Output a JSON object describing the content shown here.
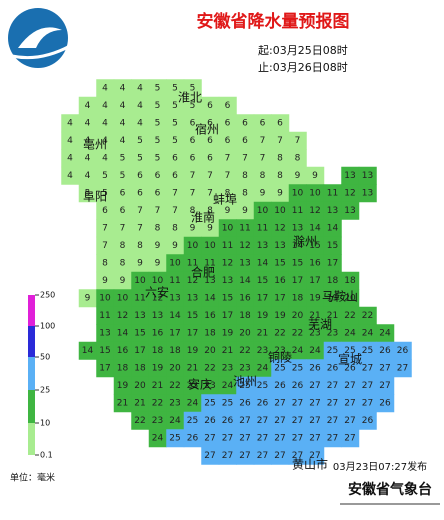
{
  "header": {
    "title": "安徽省降水量预报图",
    "start": "起:03月25日08时",
    "end": "止:03月26日08时"
  },
  "legend": {
    "thresholds": [
      0.1,
      10,
      25,
      50,
      100,
      250
    ],
    "colors": [
      "#a8ec90",
      "#3fb541",
      "#5ab0f5",
      "#2a2ad8",
      "#e020d8"
    ],
    "unit": "单位：毫米"
  },
  "cities": [
    "亳州",
    "淮北",
    "宿州",
    "阜阳",
    "蚌埠",
    "淮南",
    "滁州",
    "六安",
    "合肥",
    "马鞍山",
    "芜湖",
    "铜陵",
    "宣城",
    "安庆",
    "池州",
    "黄山市"
  ],
  "grid": [
    [
      null,
      null,
      4,
      4,
      4,
      5,
      5,
      5,
      null,
      null,
      null,
      null,
      null,
      null,
      null,
      null,
      null,
      null,
      null,
      null
    ],
    [
      null,
      4,
      4,
      4,
      4,
      5,
      5,
      5,
      6,
      6,
      null,
      null,
      null,
      null,
      null,
      null,
      null,
      null,
      null,
      null
    ],
    [
      4,
      4,
      4,
      4,
      4,
      5,
      5,
      6,
      6,
      6,
      6,
      6,
      6,
      null,
      null,
      null,
      null,
      null,
      null,
      null
    ],
    [
      4,
      4,
      4,
      4,
      5,
      5,
      5,
      6,
      6,
      6,
      6,
      7,
      7,
      7,
      null,
      null,
      null,
      null,
      null,
      null
    ],
    [
      4,
      4,
      4,
      5,
      5,
      5,
      6,
      6,
      6,
      7,
      7,
      7,
      8,
      8,
      null,
      null,
      null,
      null,
      null,
      null
    ],
    [
      4,
      4,
      5,
      5,
      6,
      6,
      6,
      7,
      7,
      7,
      8,
      8,
      8,
      9,
      9,
      null,
      13,
      13,
      null,
      null
    ],
    [
      null,
      5,
      5,
      6,
      6,
      6,
      7,
      7,
      7,
      8,
      8,
      9,
      9,
      10,
      10,
      11,
      12,
      13,
      null,
      null
    ],
    [
      null,
      null,
      6,
      6,
      7,
      7,
      7,
      8,
      8,
      9,
      9,
      10,
      10,
      11,
      12,
      13,
      13,
      null,
      null,
      null
    ],
    [
      null,
      null,
      7,
      7,
      7,
      8,
      8,
      9,
      9,
      10,
      11,
      11,
      12,
      13,
      14,
      14,
      null,
      null,
      null,
      null
    ],
    [
      null,
      null,
      7,
      8,
      8,
      9,
      9,
      10,
      10,
      11,
      12,
      13,
      13,
      14,
      15,
      15,
      null,
      null,
      null,
      null
    ],
    [
      null,
      null,
      8,
      8,
      9,
      9,
      10,
      11,
      11,
      12,
      13,
      14,
      15,
      15,
      16,
      17,
      null,
      null,
      null,
      null
    ],
    [
      null,
      null,
      9,
      9,
      10,
      10,
      11,
      12,
      13,
      13,
      14,
      15,
      16,
      17,
      17,
      18,
      18,
      null,
      null,
      null
    ],
    [
      null,
      9,
      10,
      10,
      11,
      12,
      13,
      13,
      14,
      15,
      16,
      17,
      17,
      18,
      19,
      19,
      20,
      null,
      null,
      null
    ],
    [
      null,
      null,
      11,
      12,
      13,
      13,
      14,
      15,
      16,
      17,
      18,
      19,
      19,
      20,
      21,
      21,
      22,
      22,
      null,
      null
    ],
    [
      null,
      null,
      13,
      14,
      15,
      16,
      17,
      17,
      18,
      19,
      20,
      21,
      22,
      22,
      23,
      23,
      24,
      24,
      24,
      null
    ],
    [
      null,
      14,
      15,
      16,
      17,
      18,
      18,
      19,
      20,
      21,
      22,
      23,
      23,
      24,
      24,
      25,
      25,
      25,
      26,
      26
    ],
    [
      null,
      null,
      17,
      18,
      18,
      19,
      20,
      21,
      22,
      23,
      23,
      24,
      25,
      25,
      26,
      26,
      26,
      27,
      27,
      27
    ],
    [
      null,
      null,
      null,
      19,
      20,
      21,
      22,
      23,
      23,
      24,
      25,
      25,
      26,
      26,
      27,
      27,
      27,
      27,
      27,
      null
    ],
    [
      null,
      null,
      null,
      21,
      21,
      22,
      23,
      24,
      25,
      25,
      26,
      26,
      27,
      27,
      27,
      27,
      27,
      27,
      26,
      null
    ],
    [
      null,
      null,
      null,
      null,
      22,
      23,
      24,
      25,
      26,
      26,
      27,
      27,
      27,
      27,
      27,
      27,
      27,
      26,
      null,
      null
    ],
    [
      null,
      null,
      null,
      null,
      null,
      24,
      25,
      26,
      27,
      27,
      27,
      27,
      27,
      27,
      27,
      27,
      27,
      null,
      null,
      null
    ],
    [
      null,
      null,
      null,
      null,
      null,
      null,
      null,
      null,
      27,
      27,
      27,
      27,
      27,
      27,
      27,
      null,
      null,
      null,
      null,
      null
    ]
  ],
  "footer": {
    "issued": "03月23日07:27发布",
    "agency": "安徽省气象台"
  }
}
